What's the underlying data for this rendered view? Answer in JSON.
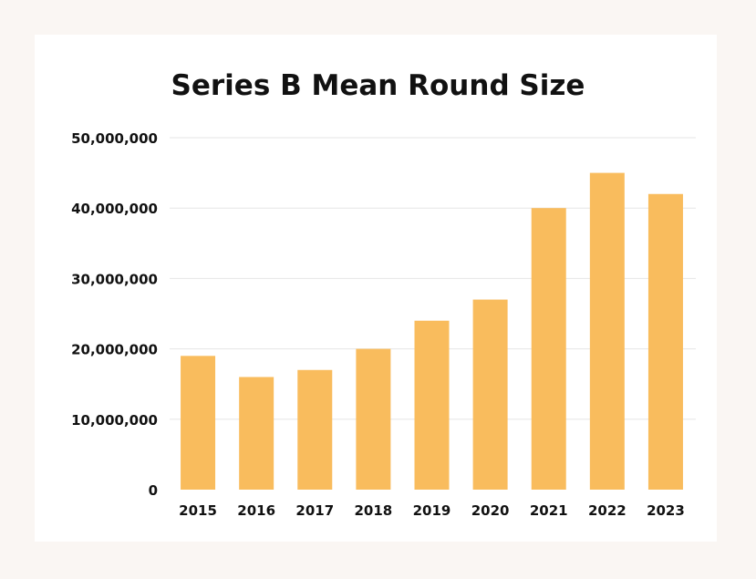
{
  "chart_data": {
    "type": "bar",
    "title": "Series B Mean Round Size",
    "xlabel": "",
    "ylabel": "",
    "categories": [
      "2015",
      "2016",
      "2017",
      "2018",
      "2019",
      "2020",
      "2021",
      "2022",
      "2023"
    ],
    "values": [
      19000000,
      16000000,
      17000000,
      20000000,
      24000000,
      27000000,
      40000000,
      45000000,
      42000000
    ],
    "ylim": [
      0,
      50000000
    ],
    "yticks": [
      "0",
      "10,000,000",
      "20,000,000",
      "30,000,000",
      "40,000,000",
      "50,000,000"
    ],
    "grid": true,
    "bar_color": "#f9bc5d",
    "grid_color": "#e6e6e6",
    "background_color": "#faf6f3",
    "card_color": "#ffffff"
  }
}
